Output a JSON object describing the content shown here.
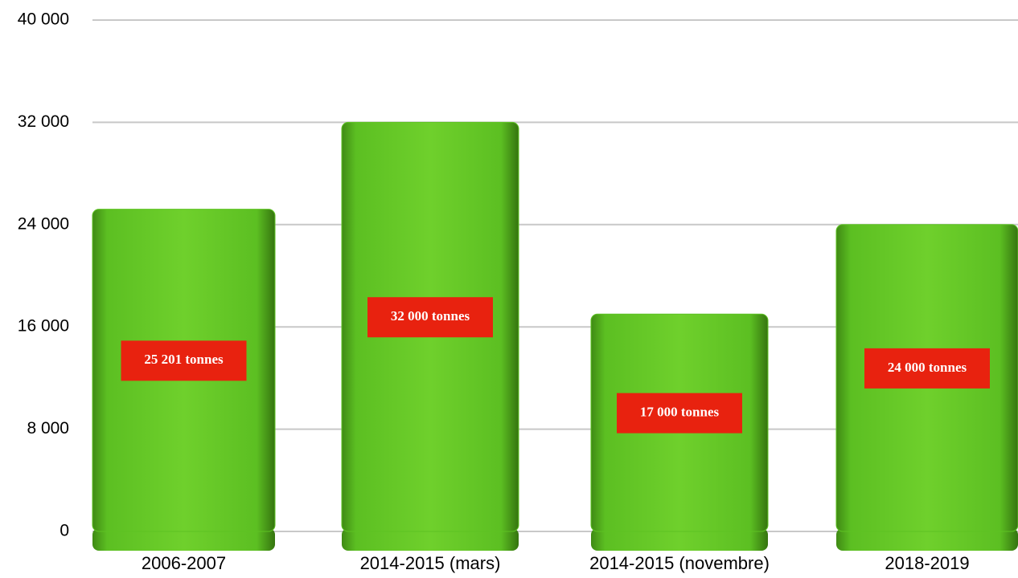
{
  "chart_data": {
    "type": "bar",
    "categories": [
      "2006-2007",
      "2014-2015 (mars)",
      "2014-2015 (novembre)",
      "2018-2019"
    ],
    "values": [
      25201,
      32000,
      17000,
      24000
    ],
    "value_labels": [
      "25 201 tonnes",
      "32 000 tonnes",
      "17 000 tonnes",
      "24 000 tonnes"
    ],
    "color": "#5dc222",
    "ylim": [
      0,
      40000
    ],
    "yticks": [
      0,
      {
        "value": 8000,
        "label": "8 000"
      },
      {
        "value": 16000,
        "label": "16 000"
      },
      {
        "value": 24000,
        "label": "24 000"
      },
      {
        "value": 32000,
        "label": "32 000"
      },
      {
        "value": 40000,
        "label": "40 000"
      }
    ],
    "grid": true
  }
}
